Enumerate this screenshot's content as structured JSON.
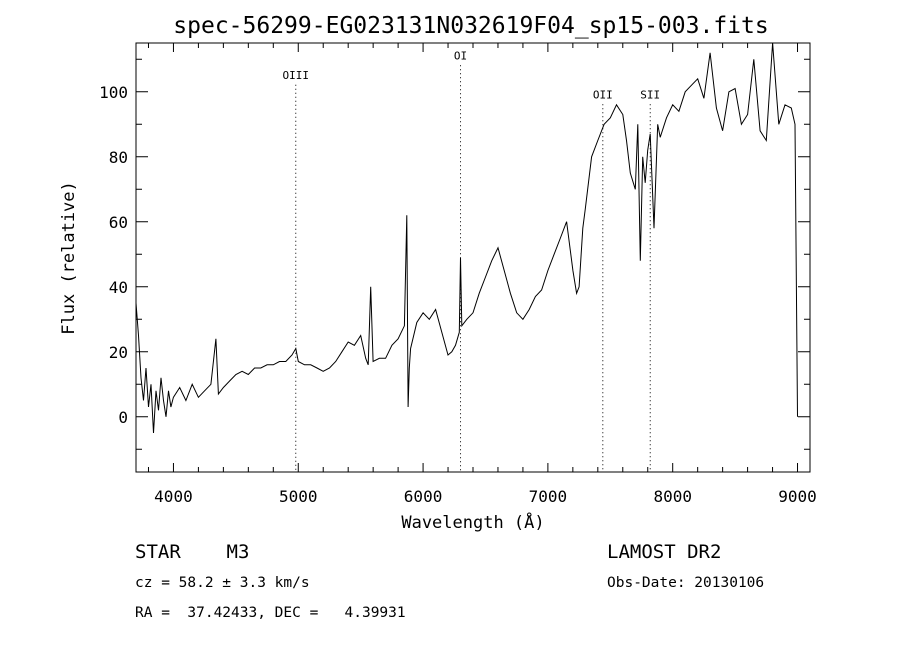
{
  "chart_data": {
    "type": "line",
    "title": "spec-56299-EG023131N032619F04_sp15-003.fits",
    "xlabel": "Wavelength (Å)",
    "ylabel": "Flux (relative)",
    "xlim": [
      3700,
      9100
    ],
    "ylim": [
      -17,
      115
    ],
    "x_ticks": [
      4000,
      5000,
      6000,
      7000,
      8000,
      9000
    ],
    "y_ticks": [
      0,
      20,
      40,
      60,
      80,
      100
    ],
    "grid": false,
    "lines": [
      {
        "label": "OIII",
        "x": 4980,
        "label_y": 104
      },
      {
        "label": "OI",
        "x": 6300,
        "label_y": 110
      },
      {
        "label": "OII",
        "x": 7440,
        "label_y": 98
      },
      {
        "label": "SII",
        "x": 7820,
        "label_y": 98
      }
    ],
    "spectrum": {
      "x": [
        3700,
        3720,
        3740,
        3760,
        3780,
        3800,
        3820,
        3840,
        3860,
        3880,
        3900,
        3920,
        3940,
        3960,
        3980,
        4000,
        4050,
        4100,
        4150,
        4200,
        4250,
        4300,
        4340,
        4360,
        4400,
        4450,
        4500,
        4550,
        4600,
        4650,
        4700,
        4750,
        4800,
        4850,
        4900,
        4950,
        4980,
        5000,
        5050,
        5100,
        5150,
        5200,
        5250,
        5300,
        5350,
        5400,
        5450,
        5500,
        5540,
        5560,
        5580,
        5600,
        5650,
        5700,
        5750,
        5800,
        5850,
        5870,
        5880,
        5890,
        5900,
        5950,
        6000,
        6050,
        6100,
        6150,
        6200,
        6230,
        6260,
        6290,
        6300,
        6310,
        6350,
        6400,
        6450,
        6500,
        6550,
        6600,
        6650,
        6700,
        6750,
        6800,
        6850,
        6900,
        6950,
        7000,
        7050,
        7100,
        7150,
        7200,
        7230,
        7250,
        7280,
        7300,
        7350,
        7400,
        7450,
        7500,
        7550,
        7600,
        7630,
        7660,
        7700,
        7720,
        7740,
        7760,
        7780,
        7800,
        7820,
        7850,
        7880,
        7900,
        7950,
        8000,
        8050,
        8100,
        8150,
        8200,
        8250,
        8300,
        8350,
        8400,
        8450,
        8500,
        8550,
        8600,
        8650,
        8700,
        8750,
        8800,
        8850,
        8900,
        8950,
        8980,
        9000
      ],
      "flux": [
        35,
        25,
        12,
        5,
        15,
        3,
        10,
        -5,
        8,
        2,
        12,
        5,
        0,
        8,
        3,
        6,
        9,
        5,
        10,
        6,
        8,
        10,
        24,
        7,
        9,
        11,
        13,
        14,
        13,
        15,
        15,
        16,
        16,
        17,
        17,
        19,
        21,
        17,
        16,
        16,
        15,
        14,
        15,
        17,
        20,
        23,
        22,
        25,
        18,
        16,
        40,
        17,
        18,
        18,
        22,
        24,
        28,
        62,
        3,
        15,
        21,
        29,
        32,
        30,
        33,
        26,
        19,
        20,
        22,
        26,
        49,
        28,
        30,
        32,
        38,
        43,
        48,
        52,
        45,
        38,
        32,
        30,
        33,
        37,
        39,
        45,
        50,
        55,
        60,
        45,
        38,
        40,
        58,
        64,
        80,
        85,
        90,
        92,
        96,
        93,
        85,
        75,
        70,
        90,
        48,
        80,
        72,
        82,
        87,
        58,
        90,
        86,
        92,
        96,
        94,
        100,
        102,
        104,
        98,
        112,
        95,
        88,
        100,
        101,
        90,
        93,
        110,
        88,
        85,
        115,
        90,
        96,
        95,
        90,
        0
      ]
    }
  },
  "info": {
    "object": "STAR    M3",
    "cz": "cz = 58.2 ± 3.3 km/s",
    "coords": "RA =  37.42433, DEC =   4.39931",
    "survey": "LAMOST DR2",
    "obs_date": "Obs-Date: 20130106"
  }
}
